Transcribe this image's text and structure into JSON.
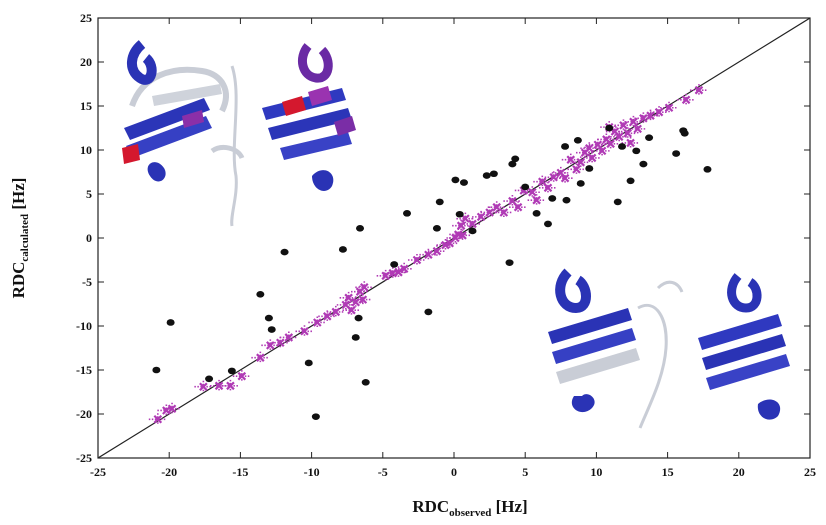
{
  "chart_data": {
    "type": "scatter",
    "xlabel_main": "RDC",
    "xlabel_sub": "observed",
    "xlabel_unit": " [Hz]",
    "ylabel_main": "RDC",
    "ylabel_sub": "calculated",
    "ylabel_unit": " [Hz]",
    "xlim": [
      -25,
      25
    ],
    "ylim": [
      -25,
      25
    ],
    "xticks": [
      -25,
      -20,
      -15,
      -10,
      -5,
      0,
      5,
      10,
      15,
      20,
      25
    ],
    "yticks": [
      -25,
      -20,
      -15,
      -10,
      -5,
      0,
      5,
      10,
      15,
      20,
      25
    ],
    "grid": false,
    "reference_line": {
      "from": [
        -25,
        -25
      ],
      "to": [
        25,
        25
      ],
      "color": "#222222"
    },
    "series": [
      {
        "marker": "x-with-error-bars",
        "color": "#b03ab5",
        "points": [
          [
            -20.8,
            -20.6
          ],
          [
            -20.2,
            -19.6
          ],
          [
            -19.8,
            -19.4
          ],
          [
            -17.6,
            -16.9
          ],
          [
            -16.5,
            -16.8
          ],
          [
            -15.7,
            -16.8
          ],
          [
            -14.9,
            -15.7
          ],
          [
            -13.6,
            -13.6
          ],
          [
            -12.9,
            -12.2
          ],
          [
            -12.2,
            -11.9
          ],
          [
            -11.6,
            -11.3
          ],
          [
            -10.5,
            -10.6
          ],
          [
            -9.6,
            -9.6
          ],
          [
            -8.9,
            -8.9
          ],
          [
            -8.3,
            -8.4
          ],
          [
            -7.6,
            -7.6
          ],
          [
            -7.4,
            -6.8
          ],
          [
            -7.2,
            -8.2
          ],
          [
            -6.9,
            -7.3
          ],
          [
            -6.6,
            -6.1
          ],
          [
            -6.4,
            -7.0
          ],
          [
            -6.3,
            -5.6
          ],
          [
            -4.8,
            -4.3
          ],
          [
            -4.3,
            -4.0
          ],
          [
            -3.9,
            -3.9
          ],
          [
            -3.5,
            -3.5
          ],
          [
            -2.6,
            -2.5
          ],
          [
            -1.8,
            -1.9
          ],
          [
            -1.2,
            -1.5
          ],
          [
            -0.6,
            -0.8
          ],
          [
            -0.3,
            -0.6
          ],
          [
            0.1,
            0.0
          ],
          [
            0.3,
            0.4
          ],
          [
            0.6,
            0.3
          ],
          [
            0.5,
            1.4
          ],
          [
            0.8,
            2.2
          ],
          [
            1.3,
            1.6
          ],
          [
            1.9,
            2.4
          ],
          [
            2.5,
            2.9
          ],
          [
            3.0,
            3.5
          ],
          [
            3.5,
            2.9
          ],
          [
            4.1,
            4.2
          ],
          [
            4.5,
            3.5
          ],
          [
            4.9,
            5.4
          ],
          [
            5.5,
            5.2
          ],
          [
            5.8,
            4.3
          ],
          [
            6.2,
            6.4
          ],
          [
            6.6,
            5.7
          ],
          [
            7.0,
            6.9
          ],
          [
            7.5,
            7.4
          ],
          [
            7.8,
            6.8
          ],
          [
            8.2,
            8.9
          ],
          [
            8.6,
            7.8
          ],
          [
            8.9,
            8.6
          ],
          [
            9.2,
            9.7
          ],
          [
            9.5,
            10.2
          ],
          [
            9.7,
            9.1
          ],
          [
            10.1,
            10.6
          ],
          [
            10.4,
            9.9
          ],
          [
            10.7,
            11.2
          ],
          [
            11.0,
            10.7
          ],
          [
            11.3,
            12.1
          ],
          [
            11.6,
            11.5
          ],
          [
            11.9,
            12.8
          ],
          [
            12.2,
            11.9
          ],
          [
            12.6,
            13.2
          ],
          [
            12.9,
            12.4
          ],
          [
            13.3,
            13.6
          ],
          [
            13.8,
            13.9
          ],
          [
            14.4,
            14.3
          ],
          [
            15.1,
            14.8
          ],
          [
            16.3,
            15.7
          ],
          [
            17.2,
            16.8
          ],
          [
            12.4,
            10.8
          ],
          [
            10.9,
            12.6
          ]
        ]
      },
      {
        "marker": "filled-circle",
        "color": "#111111",
        "points": [
          [
            -20.9,
            -15.0
          ],
          [
            -19.9,
            -9.6
          ],
          [
            -17.2,
            -16.0
          ],
          [
            -15.6,
            -15.1
          ],
          [
            -13.6,
            -6.4
          ],
          [
            -13.0,
            -9.1
          ],
          [
            -12.8,
            -10.4
          ],
          [
            -11.9,
            -1.6
          ],
          [
            -10.2,
            -14.2
          ],
          [
            -9.7,
            -20.3
          ],
          [
            -7.8,
            -1.3
          ],
          [
            -6.9,
            -11.3
          ],
          [
            -6.7,
            -9.1
          ],
          [
            -6.6,
            1.1
          ],
          [
            -6.2,
            -16.4
          ],
          [
            -4.2,
            -3.0
          ],
          [
            -3.3,
            2.8
          ],
          [
            -1.8,
            -8.4
          ],
          [
            -1.2,
            1.1
          ],
          [
            -1.0,
            4.1
          ],
          [
            0.1,
            6.6
          ],
          [
            0.4,
            2.7
          ],
          [
            0.7,
            6.3
          ],
          [
            1.3,
            0.8
          ],
          [
            2.3,
            7.1
          ],
          [
            2.8,
            7.3
          ],
          [
            3.9,
            -2.8
          ],
          [
            4.1,
            8.4
          ],
          [
            4.3,
            9.0
          ],
          [
            5.0,
            5.8
          ],
          [
            5.8,
            2.8
          ],
          [
            6.6,
            1.6
          ],
          [
            6.9,
            4.5
          ],
          [
            7.8,
            10.4
          ],
          [
            7.9,
            4.3
          ],
          [
            8.7,
            11.1
          ],
          [
            8.9,
            6.2
          ],
          [
            9.5,
            7.9
          ],
          [
            10.9,
            12.5
          ],
          [
            11.5,
            4.1
          ],
          [
            11.8,
            10.4
          ],
          [
            12.4,
            6.5
          ],
          [
            12.8,
            9.9
          ],
          [
            13.3,
            8.4
          ],
          [
            13.7,
            11.4
          ],
          [
            15.6,
            9.6
          ],
          [
            16.2,
            11.9
          ],
          [
            17.8,
            7.8
          ],
          [
            16.1,
            12.2
          ]
        ]
      }
    ]
  },
  "insets": [
    {
      "icon": "protein-ribbon-structure-colored"
    },
    {
      "icon": "protein-ribbon-structure-blue"
    }
  ]
}
